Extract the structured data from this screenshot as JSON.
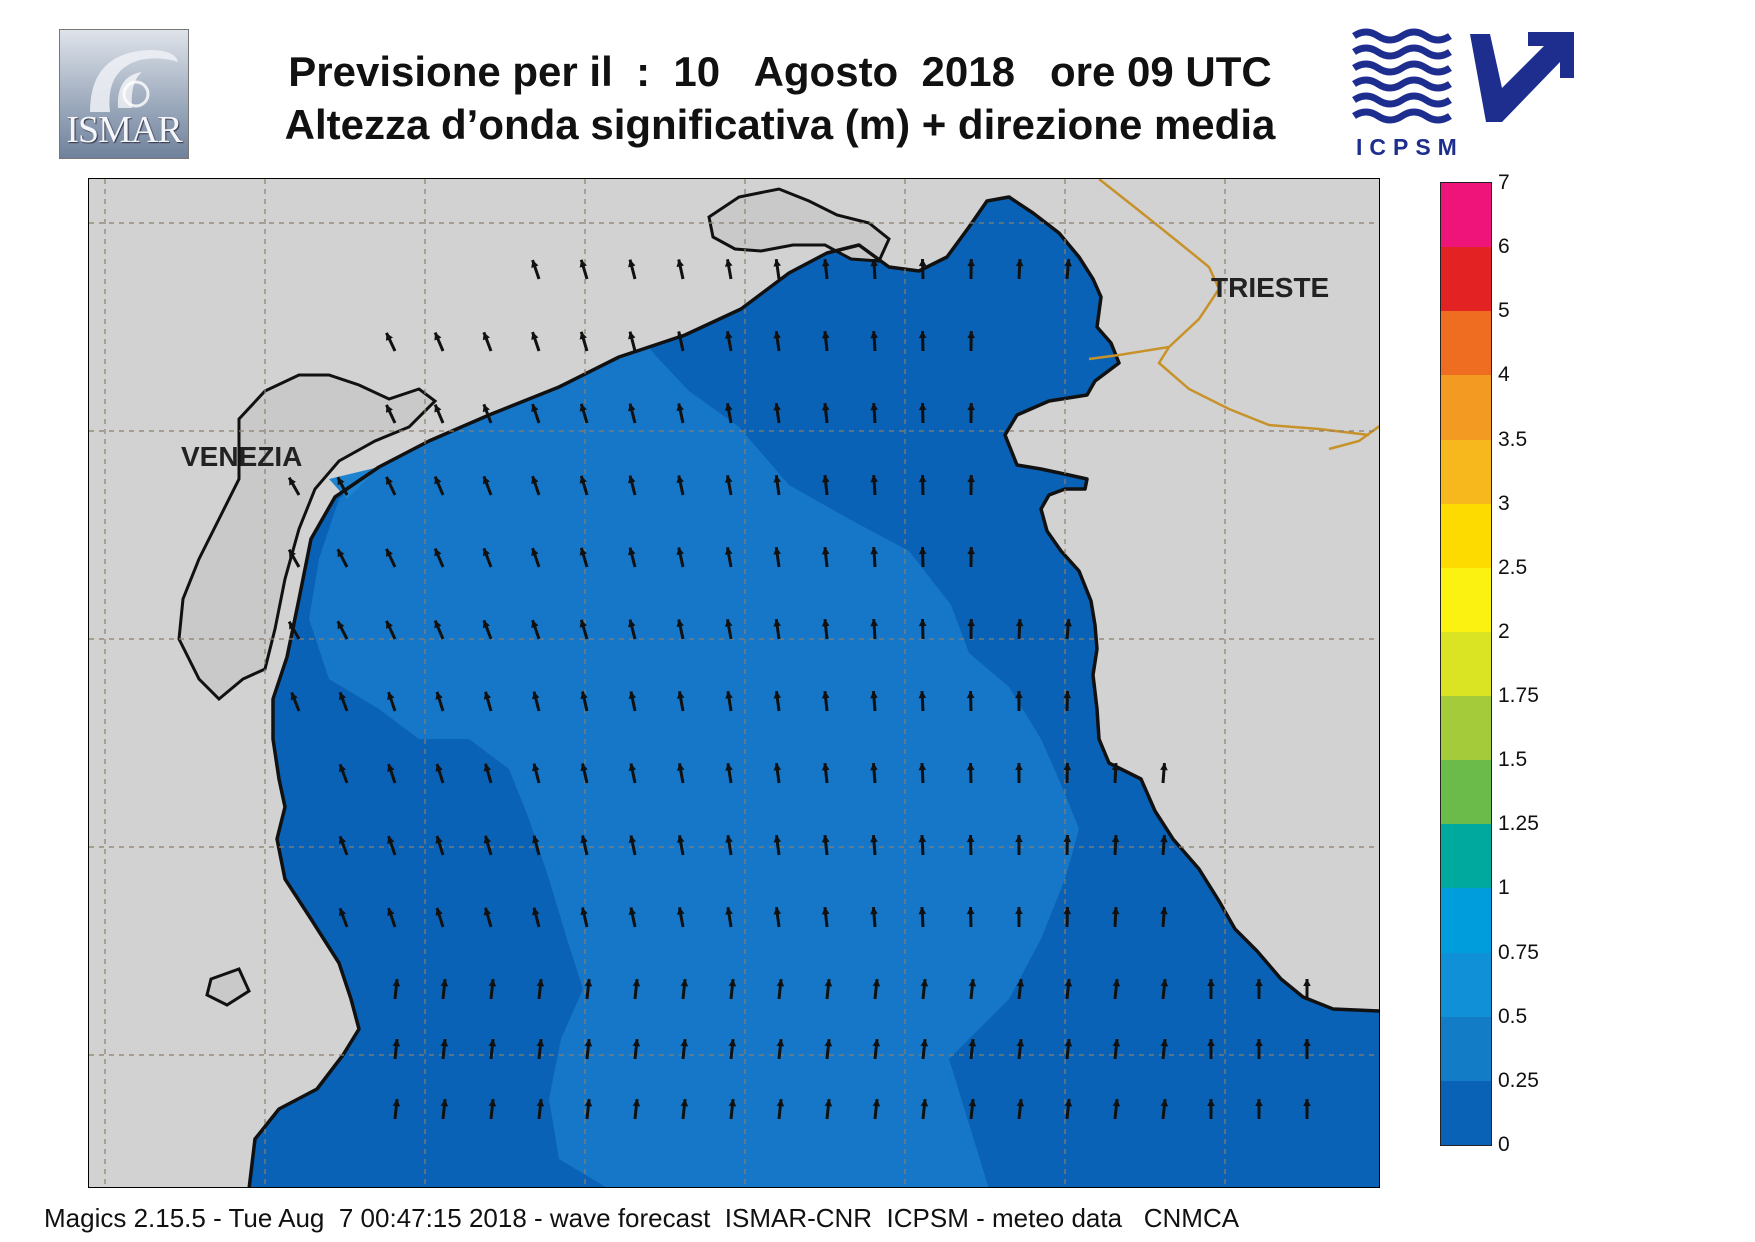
{
  "header": {
    "title_line1": "Previsione per il  :  10   Agosto  2018   ore 09 UTC",
    "title_line2": "Altezza d’onda significativa (m) + direzione media"
  },
  "logos": {
    "left": {
      "text": "ISMAR",
      "icon": "ismar-logo-icon"
    },
    "right": {
      "text": "ICPSM",
      "icon": "icpsm-logo-icon"
    }
  },
  "map": {
    "labels": {
      "venezia": "VENEZIA",
      "trieste": "TRIESTE"
    },
    "colors": {
      "land": "#d2d2d2",
      "sea_0_025": "#0a62b6",
      "sea_025_05": "#1677c8",
      "coast": "#111111",
      "border": "#c8922a",
      "arrow": "#111111"
    }
  },
  "legend": {
    "ticks": [
      "7",
      "6",
      "5",
      "4",
      "3.5",
      "3",
      "2.5",
      "2",
      "1.75",
      "1.5",
      "1.25",
      "1",
      "0.75",
      "0.5",
      "0.25",
      "0"
    ],
    "colors": [
      "#ee1479",
      "#e32224",
      "#ee6d21",
      "#f39a22",
      "#f7b81d",
      "#fedb00",
      "#fbf212",
      "#dae423",
      "#a3cb3a",
      "#6abb49",
      "#00a99e",
      "#009ddc",
      "#1090d6",
      "#127dc6",
      "#0a62b6"
    ]
  },
  "footer": {
    "text": "Magics 2.15.5 - Tue Aug  7 00:47:15 2018 - wave forecast  ISMAR-CNR  ICPSM - meteo data   CNMCA"
  }
}
